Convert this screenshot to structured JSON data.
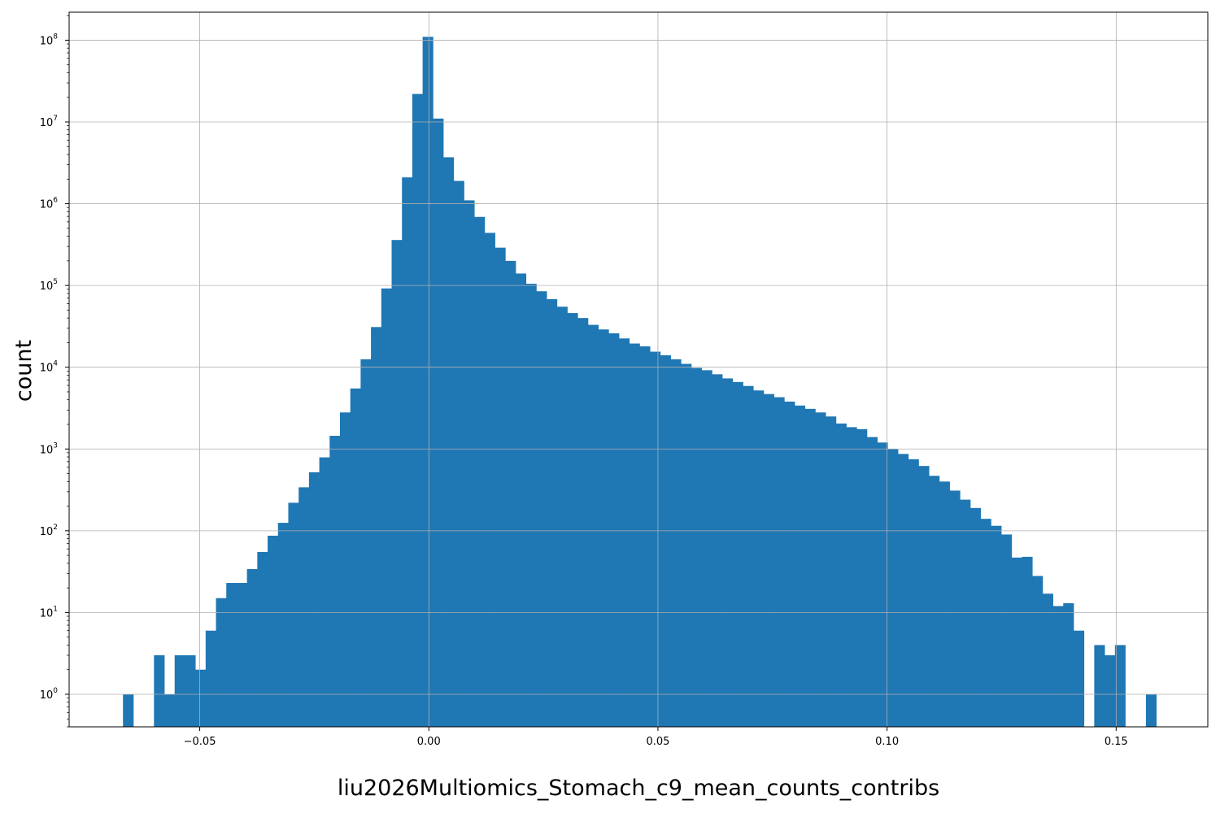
{
  "chart_data": {
    "type": "bar",
    "title": "",
    "xlabel": "liu2026Multiomics_Stomach_c9_mean_counts_contribs",
    "ylabel": "count",
    "xlim": [
      -0.0785,
      0.17
    ],
    "yscale": "log",
    "ylim": [
      0.4,
      220000000
    ],
    "grid": true,
    "bar_color": "#1f77b4",
    "x_ticks": [
      {
        "value": -0.05,
        "label": "−0.05"
      },
      {
        "value": 0.0,
        "label": "0.00"
      },
      {
        "value": 0.05,
        "label": "0.05"
      },
      {
        "value": 0.1,
        "label": "0.10"
      },
      {
        "value": 0.15,
        "label": "0.15"
      }
    ],
    "y_ticks": [
      {
        "value": 1,
        "base": "10",
        "exp": "0"
      },
      {
        "value": 10,
        "base": "10",
        "exp": "1"
      },
      {
        "value": 100,
        "base": "10",
        "exp": "2"
      },
      {
        "value": 1000,
        "base": "10",
        "exp": "3"
      },
      {
        "value": 10000,
        "base": "10",
        "exp": "4"
      },
      {
        "value": 100000,
        "base": "10",
        "exp": "5"
      },
      {
        "value": 1000000,
        "base": "10",
        "exp": "6"
      },
      {
        "value": 10000000,
        "base": "10",
        "exp": "7"
      },
      {
        "value": 100000000,
        "base": "10",
        "exp": "8"
      }
    ],
    "bin_start": -0.06675,
    "bin_width": 0.002255,
    "counts": [
      1,
      0,
      0,
      3,
      1,
      3,
      3,
      2,
      6,
      15,
      23,
      23,
      34,
      55,
      87,
      125,
      220,
      340,
      520,
      790,
      1450,
      2800,
      5500,
      12500,
      31000,
      92000,
      360000,
      2100000,
      22000000,
      110000000,
      11000000,
      3700000,
      1900000,
      1100000,
      690000,
      440000,
      290000,
      200000,
      140000,
      105000,
      85000,
      68000,
      55000,
      46000,
      40000,
      33000,
      29000,
      26000,
      22500,
      19500,
      18000,
      15500,
      14000,
      12500,
      11000,
      9800,
      9200,
      8200,
      7300,
      6600,
      5900,
      5200,
      4700,
      4300,
      3800,
      3400,
      3100,
      2800,
      2500,
      2050,
      1850,
      1750,
      1400,
      1200,
      1000,
      870,
      750,
      620,
      470,
      400,
      310,
      240,
      190,
      140,
      115,
      90,
      47,
      48,
      28,
      17,
      12,
      13,
      6,
      0,
      4,
      3,
      4,
      0,
      0,
      1
    ]
  }
}
